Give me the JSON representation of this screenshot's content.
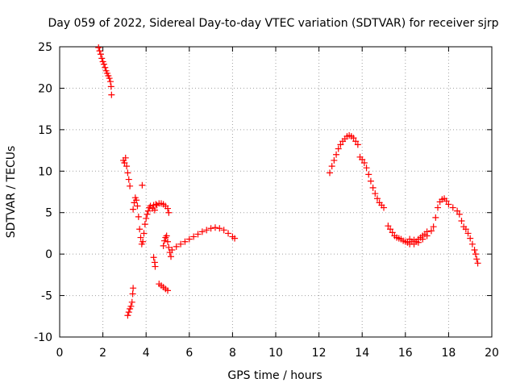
{
  "chart_data": {
    "type": "scatter",
    "title": "Day 059 of 2022, Sidereal Day-to-day VTEC variation (SDTVAR) for receiver sjrp",
    "xlabel": "GPS time / hours",
    "ylabel": "SDTVAR / TECUs",
    "xlim": [
      0,
      20
    ],
    "ylim": [
      -10,
      25
    ],
    "xticks": [
      0,
      2,
      4,
      6,
      8,
      10,
      12,
      14,
      16,
      18,
      20
    ],
    "yticks": [
      -10,
      -5,
      0,
      5,
      10,
      15,
      20,
      25
    ],
    "grid": true,
    "marker": "+",
    "color": "#ff0000",
    "series": [
      {
        "name": "SDTVAR",
        "points": [
          [
            1.8,
            24.9
          ],
          [
            1.85,
            24.5
          ],
          [
            1.9,
            24.1
          ],
          [
            1.95,
            23.6
          ],
          [
            2.0,
            23.2
          ],
          [
            2.05,
            22.9
          ],
          [
            2.1,
            22.5
          ],
          [
            2.15,
            22.1
          ],
          [
            2.2,
            21.8
          ],
          [
            2.25,
            21.5
          ],
          [
            2.3,
            21.2
          ],
          [
            2.35,
            20.8
          ],
          [
            2.38,
            20.2
          ],
          [
            2.4,
            19.2
          ],
          [
            2.95,
            11.3
          ],
          [
            3.0,
            11.0
          ],
          [
            3.05,
            11.6
          ],
          [
            3.1,
            10.6
          ],
          [
            3.15,
            9.8
          ],
          [
            3.2,
            9.0
          ],
          [
            3.25,
            8.2
          ],
          [
            3.4,
            5.4
          ],
          [
            3.45,
            6.2
          ],
          [
            3.5,
            6.8
          ],
          [
            3.55,
            6.5
          ],
          [
            3.6,
            5.8
          ],
          [
            3.65,
            4.5
          ],
          [
            3.7,
            3.0
          ],
          [
            3.75,
            2.0
          ],
          [
            3.8,
            1.2
          ],
          [
            3.82,
            8.3
          ],
          [
            3.85,
            1.5
          ],
          [
            3.9,
            2.5
          ],
          [
            3.95,
            3.6
          ],
          [
            4.0,
            4.3
          ],
          [
            4.05,
            4.8
          ],
          [
            4.1,
            5.2
          ],
          [
            4.15,
            5.6
          ],
          [
            4.2,
            5.8
          ],
          [
            4.3,
            5.5
          ],
          [
            4.35,
            5.9
          ],
          [
            4.4,
            5.3
          ],
          [
            4.45,
            6.0
          ],
          [
            4.5,
            5.9
          ],
          [
            4.6,
            6.1
          ],
          [
            4.7,
            6.1
          ],
          [
            4.8,
            6.0
          ],
          [
            4.9,
            5.8
          ],
          [
            5.0,
            5.5
          ],
          [
            5.05,
            5.0
          ],
          [
            4.35,
            -0.4
          ],
          [
            4.4,
            -1.0
          ],
          [
            4.42,
            -1.5
          ],
          [
            4.8,
            1.0
          ],
          [
            4.85,
            1.6
          ],
          [
            4.9,
            2.0
          ],
          [
            4.95,
            2.2
          ],
          [
            5.0,
            1.5
          ],
          [
            5.05,
            0.8
          ],
          [
            5.1,
            0.2
          ],
          [
            5.15,
            -0.3
          ],
          [
            4.6,
            -3.6
          ],
          [
            4.7,
            -3.8
          ],
          [
            4.8,
            -4.0
          ],
          [
            4.9,
            -4.2
          ],
          [
            5.0,
            -4.4
          ],
          [
            3.15,
            -7.4
          ],
          [
            3.2,
            -7.0
          ],
          [
            3.25,
            -6.6
          ],
          [
            3.3,
            -6.3
          ],
          [
            3.35,
            -5.8
          ],
          [
            3.38,
            -4.8
          ],
          [
            3.4,
            -4.1
          ],
          [
            5.2,
            0.5
          ],
          [
            5.4,
            0.9
          ],
          [
            5.6,
            1.2
          ],
          [
            5.8,
            1.5
          ],
          [
            6.0,
            1.8
          ],
          [
            6.2,
            2.1
          ],
          [
            6.4,
            2.4
          ],
          [
            6.6,
            2.7
          ],
          [
            6.8,
            2.9
          ],
          [
            7.0,
            3.1
          ],
          [
            7.2,
            3.2
          ],
          [
            7.4,
            3.1
          ],
          [
            7.6,
            2.9
          ],
          [
            7.8,
            2.5
          ],
          [
            8.0,
            2.1
          ],
          [
            8.1,
            1.9
          ],
          [
            12.5,
            9.8
          ],
          [
            12.6,
            10.6
          ],
          [
            12.7,
            11.3
          ],
          [
            12.8,
            12.0
          ],
          [
            12.9,
            12.7
          ],
          [
            13.0,
            13.2
          ],
          [
            13.1,
            13.6
          ],
          [
            13.2,
            13.9
          ],
          [
            13.3,
            14.2
          ],
          [
            13.4,
            14.3
          ],
          [
            13.5,
            14.2
          ],
          [
            13.6,
            14.0
          ],
          [
            13.7,
            13.6
          ],
          [
            13.8,
            13.2
          ],
          [
            13.9,
            11.7
          ],
          [
            14.0,
            11.4
          ],
          [
            14.1,
            11.0
          ],
          [
            14.2,
            10.4
          ],
          [
            14.3,
            9.6
          ],
          [
            14.4,
            8.8
          ],
          [
            14.5,
            8.0
          ],
          [
            14.6,
            7.3
          ],
          [
            14.7,
            6.7
          ],
          [
            14.8,
            6.2
          ],
          [
            14.9,
            5.9
          ],
          [
            15.0,
            5.6
          ],
          [
            15.2,
            3.4
          ],
          [
            15.3,
            3.0
          ],
          [
            15.4,
            2.6
          ],
          [
            15.5,
            2.2
          ],
          [
            15.6,
            2.0
          ],
          [
            15.7,
            1.9
          ],
          [
            15.8,
            1.8
          ],
          [
            15.9,
            1.6
          ],
          [
            16.0,
            1.5
          ],
          [
            16.1,
            1.4
          ],
          [
            16.2,
            1.2
          ],
          [
            16.3,
            1.5
          ],
          [
            16.4,
            1.7
          ],
          [
            16.5,
            1.5
          ],
          [
            16.6,
            1.8
          ],
          [
            16.7,
            2.0
          ],
          [
            16.8,
            2.2
          ],
          [
            16.9,
            2.4
          ],
          [
            17.0,
            2.7
          ],
          [
            16.2,
            1.8
          ],
          [
            16.4,
            1.2
          ],
          [
            16.6,
            1.4
          ],
          [
            16.8,
            1.8
          ],
          [
            17.0,
            2.2
          ],
          [
            17.2,
            2.8
          ],
          [
            17.3,
            3.3
          ],
          [
            17.4,
            4.4
          ],
          [
            17.5,
            5.6
          ],
          [
            17.6,
            6.3
          ],
          [
            17.7,
            6.6
          ],
          [
            17.8,
            6.7
          ],
          [
            17.9,
            6.4
          ],
          [
            18.0,
            6.0
          ],
          [
            18.2,
            5.6
          ],
          [
            18.4,
            5.2
          ],
          [
            18.5,
            4.8
          ],
          [
            18.6,
            4.0
          ],
          [
            18.7,
            3.3
          ],
          [
            18.8,
            3.0
          ],
          [
            18.9,
            2.5
          ],
          [
            19.0,
            1.9
          ],
          [
            19.1,
            1.2
          ],
          [
            19.2,
            0.5
          ],
          [
            19.25,
            0.0
          ],
          [
            19.3,
            -0.6
          ],
          [
            19.35,
            -1.1
          ]
        ]
      }
    ]
  }
}
